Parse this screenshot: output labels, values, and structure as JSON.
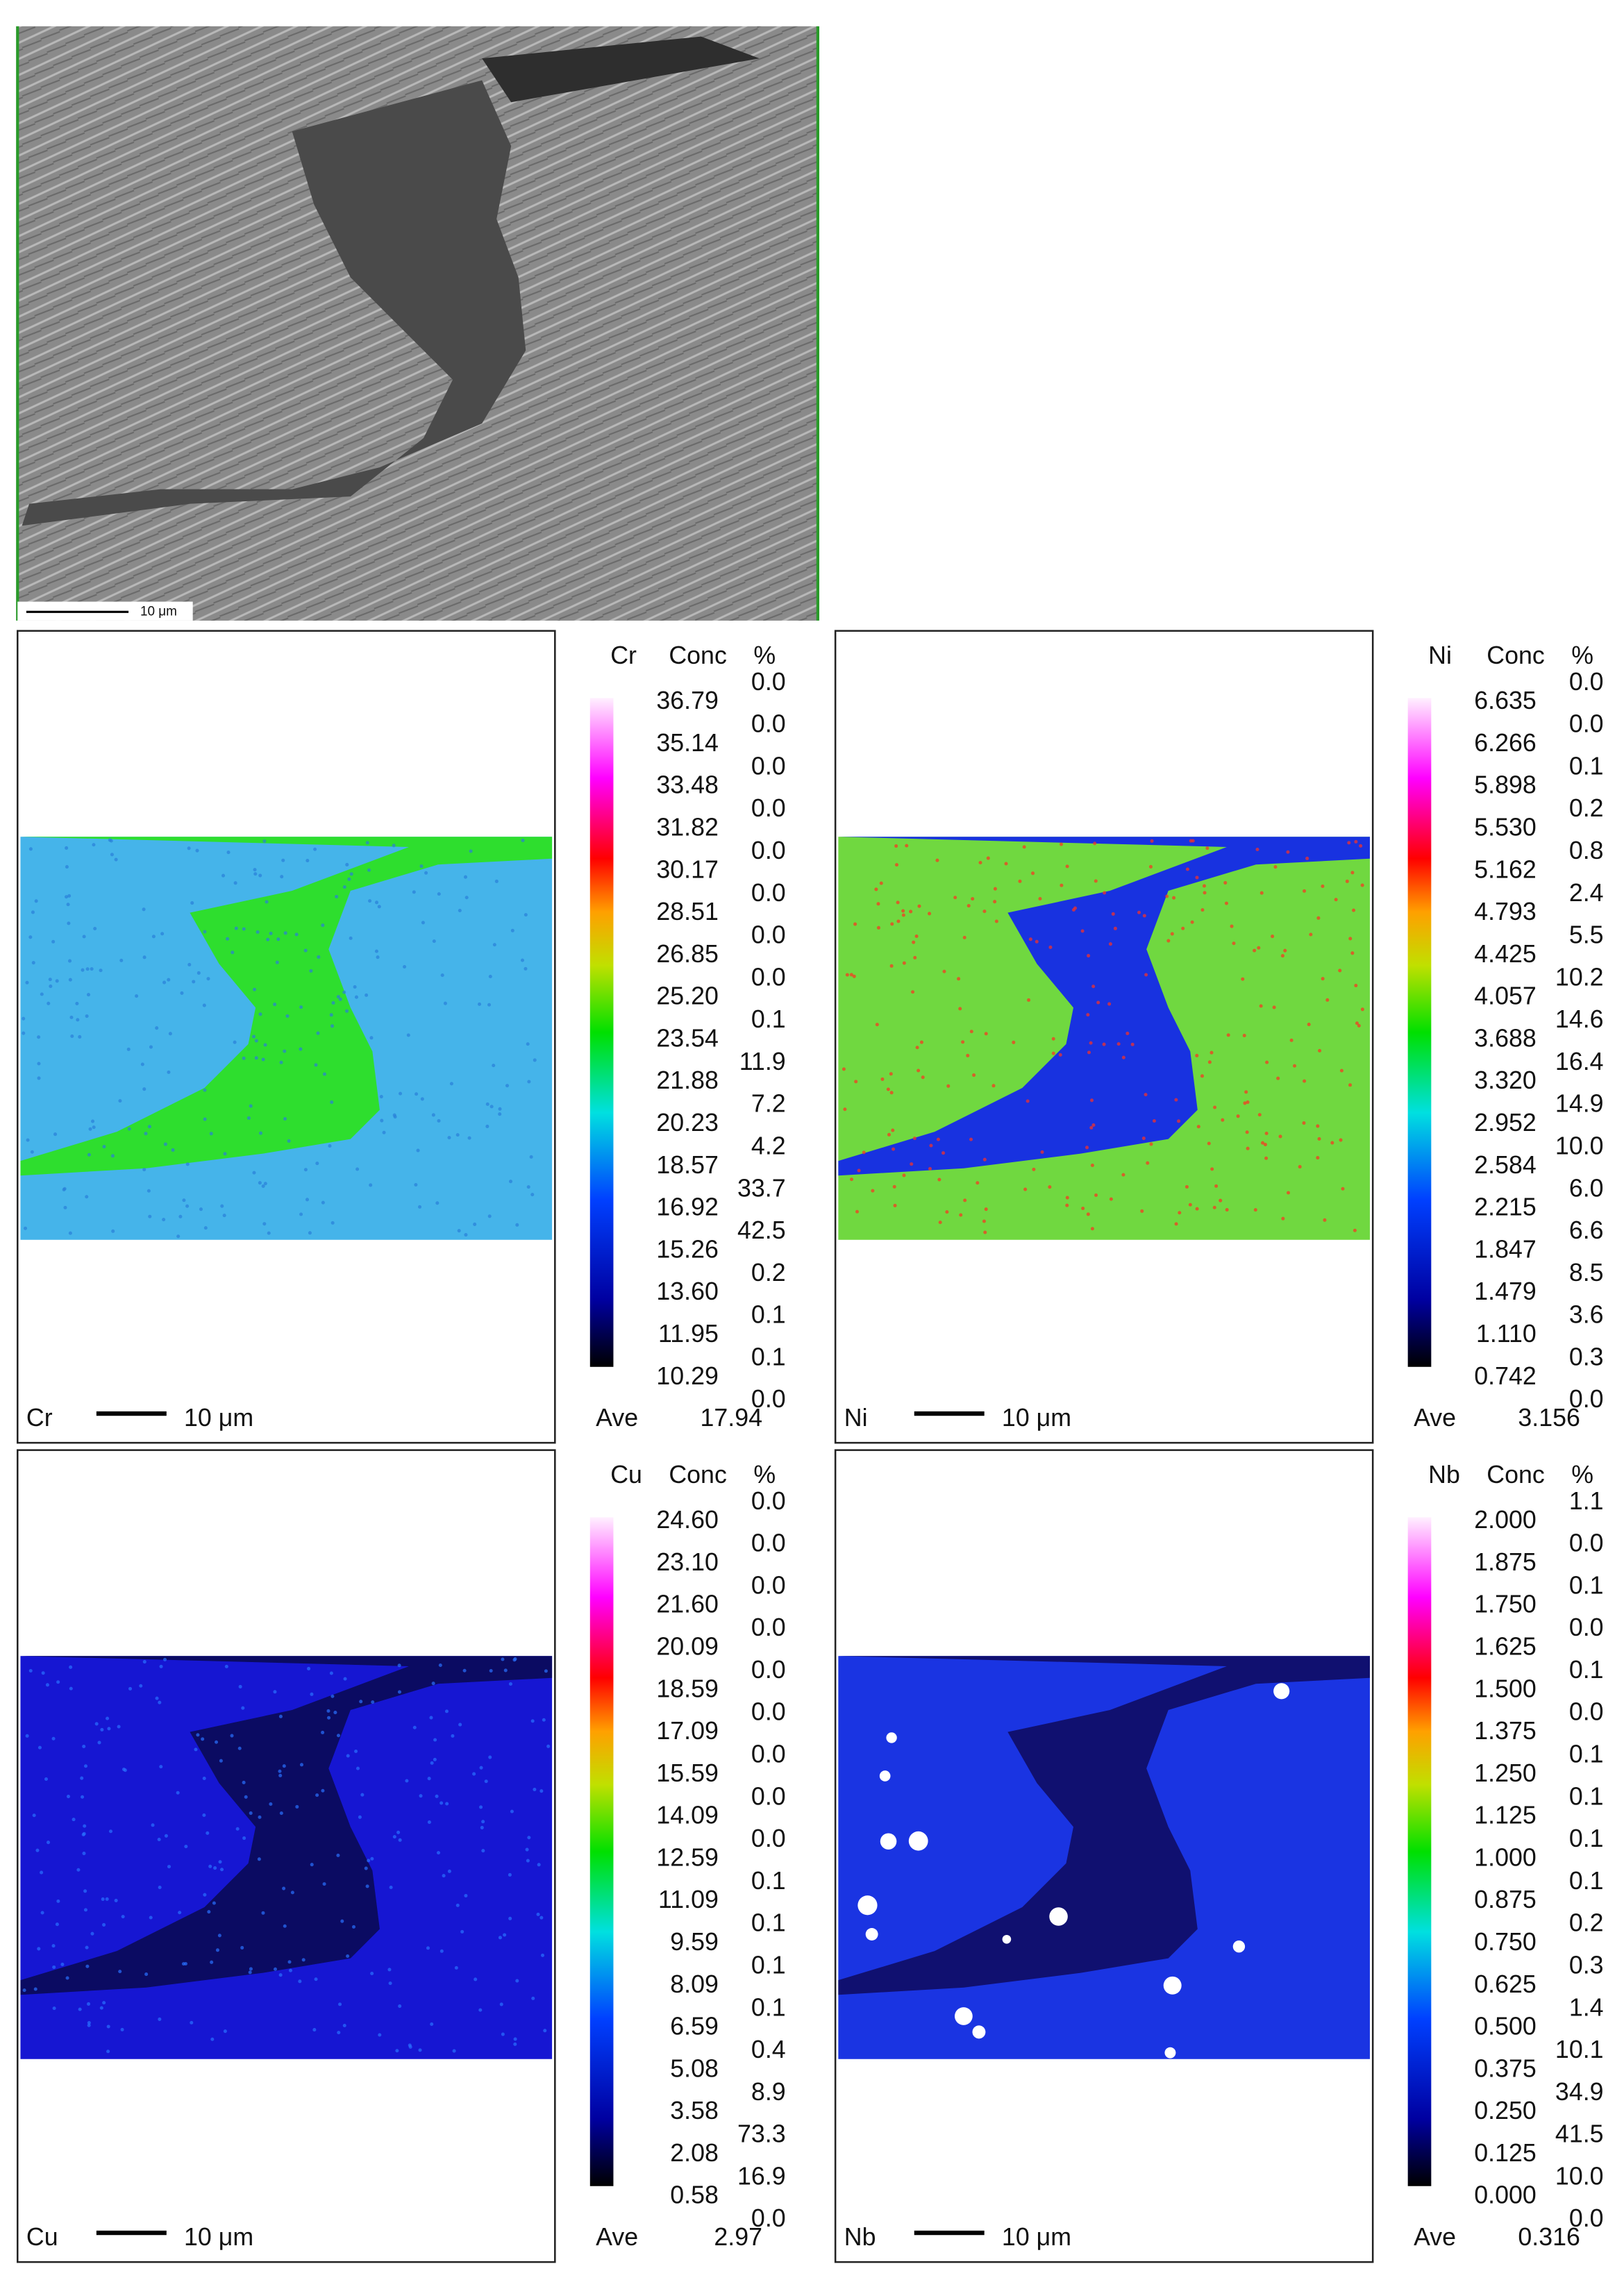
{
  "sem_image": {
    "scale_bar": "10 μm"
  },
  "maps": [
    {
      "element": "Cr",
      "conc_label": "Conc",
      "percent_label": "%",
      "scale_values": [
        "36.79",
        "35.14",
        "33.48",
        "31.82",
        "30.17",
        "28.51",
        "26.85",
        "25.20",
        "23.54",
        "21.88",
        "20.23",
        "18.57",
        "16.92",
        "15.26",
        "13.60",
        "11.95",
        "10.29"
      ],
      "percentages": [
        "0.0",
        "0.0",
        "0.0",
        "0.0",
        "0.0",
        "0.0",
        "0.0",
        "0.0",
        "0.1",
        "11.9",
        "7.2",
        "4.2",
        "33.7",
        "42.5",
        "0.2",
        "0.1",
        "0.1",
        "0.0"
      ],
      "average_label": "Ave",
      "average": "17.94",
      "scale_bar": "10 μm"
    },
    {
      "element": "Ni",
      "conc_label": "Conc",
      "percent_label": "%",
      "scale_values": [
        "6.635",
        "6.266",
        "5.898",
        "5.530",
        "5.162",
        "4.793",
        "4.425",
        "4.057",
        "3.688",
        "3.320",
        "2.952",
        "2.584",
        "2.215",
        "1.847",
        "1.479",
        "1.110",
        "0.742"
      ],
      "percentages": [
        "0.0",
        "0.0",
        "0.1",
        "0.2",
        "0.8",
        "2.4",
        "5.5",
        "10.2",
        "14.6",
        "16.4",
        "14.9",
        "10.0",
        "6.0",
        "6.6",
        "8.5",
        "3.6",
        "0.3",
        "0.0"
      ],
      "average_label": "Ave",
      "average": "3.156",
      "scale_bar": "10 μm"
    },
    {
      "element": "Cu",
      "conc_label": "Conc",
      "percent_label": "%",
      "scale_values": [
        "24.60",
        "23.10",
        "21.60",
        "20.09",
        "18.59",
        "17.09",
        "15.59",
        "14.09",
        "12.59",
        "11.09",
        "9.59",
        "8.09",
        "6.59",
        "5.08",
        "3.58",
        "2.08",
        "0.58"
      ],
      "percentages": [
        "0.0",
        "0.0",
        "0.0",
        "0.0",
        "0.0",
        "0.0",
        "0.0",
        "0.0",
        "0.0",
        "0.1",
        "0.1",
        "0.1",
        "0.1",
        "0.4",
        "8.9",
        "73.3",
        "16.9",
        "0.0"
      ],
      "average_label": "Ave",
      "average": "2.97",
      "scale_bar": "10 μm"
    },
    {
      "element": "Nb",
      "conc_label": "Conc",
      "percent_label": "%",
      "scale_values": [
        "2.000",
        "1.875",
        "1.750",
        "1.625",
        "1.500",
        "1.375",
        "1.250",
        "1.125",
        "1.000",
        "0.875",
        "0.750",
        "0.625",
        "0.500",
        "0.375",
        "0.250",
        "0.125",
        "0.000"
      ],
      "percentages": [
        "1.1",
        "0.0",
        "0.1",
        "0.0",
        "0.1",
        "0.0",
        "0.1",
        "0.1",
        "0.1",
        "0.1",
        "0.2",
        "0.3",
        "1.4",
        "10.1",
        "34.9",
        "41.5",
        "10.0",
        "0.0"
      ],
      "average_label": "Ave",
      "average": "0.316",
      "scale_bar": "10 μm"
    }
  ]
}
